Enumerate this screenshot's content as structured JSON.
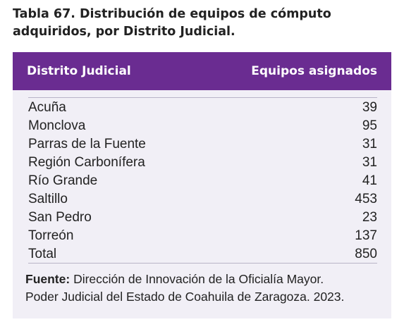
{
  "caption": {
    "line1": "Tabla 67. Distribución de equipos de cómputo",
    "line2": "adquiridos, por Distrito Judicial."
  },
  "table": {
    "headers": {
      "district": "Distrito Judicial",
      "equipment": "Equipos asignados"
    },
    "rows": [
      {
        "district": "Acuña",
        "equipment": "39"
      },
      {
        "district": "Monclova",
        "equipment": "95"
      },
      {
        "district": "Parras de la Fuente",
        "equipment": "31"
      },
      {
        "district": "Región Carbonífera",
        "equipment": "31"
      },
      {
        "district": "Río Grande",
        "equipment": "41"
      },
      {
        "district": "Saltillo",
        "equipment": "453"
      },
      {
        "district": "San Pedro",
        "equipment": "23"
      },
      {
        "district": "Torreón",
        "equipment": "137"
      },
      {
        "district": "Total",
        "equipment": "850"
      }
    ]
  },
  "source": {
    "label": "Fuente:",
    "line1": "Dirección de Innovación de la Oficialía Mayor.",
    "line2": "Poder Judicial del Estado de Coahuila de Zaragoza. 2023."
  },
  "colors": {
    "header_bg": "#6a2c91",
    "table_bg": "#f1eff6",
    "rule": "#b9b4c7"
  }
}
